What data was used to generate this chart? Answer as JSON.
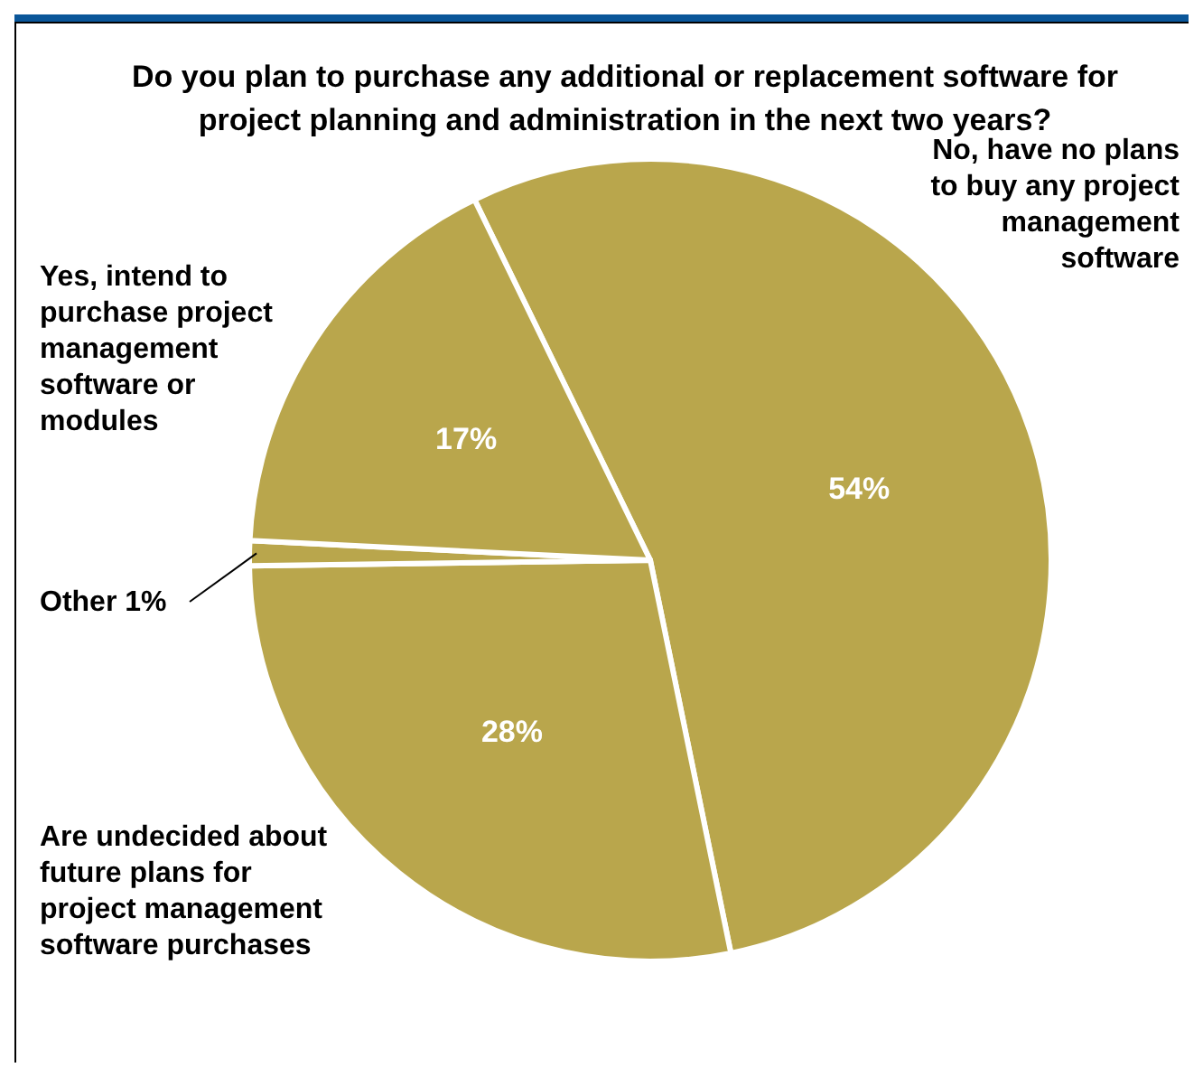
{
  "chart_data": {
    "type": "pie",
    "title": "Do you plan to purchase any additional or replacement software for project planning and administration in the next two years?",
    "categories": [
      "No, have no plans to buy any project management software",
      "Are undecided about future plans for project management software purchases",
      "Other",
      "Yes, intend to purchase project management software or modules"
    ],
    "values": [
      54,
      28,
      1,
      17
    ],
    "colors": [
      "#b9a64c",
      "#b9a64c",
      "#b9a64c",
      "#b9a64c"
    ],
    "value_labels": [
      "54%",
      "28%",
      "1%",
      "17%"
    ]
  }
}
